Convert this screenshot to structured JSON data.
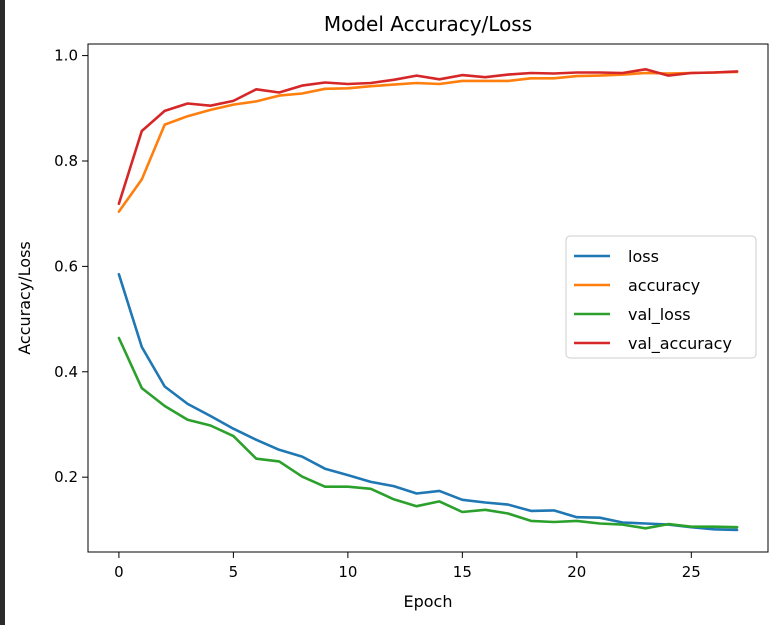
{
  "chart_data": {
    "type": "line",
    "title": "Model Accuracy/Loss",
    "xlabel": "Epoch",
    "ylabel": "Accuracy/Loss",
    "xlim": [
      -1.35,
      28.35
    ],
    "ylim": [
      0.058,
      1.022
    ],
    "xticks": [
      0,
      5,
      10,
      15,
      20,
      25
    ],
    "yticks": [
      0.2,
      0.4,
      0.6,
      0.8,
      1.0
    ],
    "xtick_labels": [
      "0",
      "5",
      "10",
      "15",
      "20",
      "25"
    ],
    "ytick_labels": [
      "0.2",
      "0.4",
      "0.6",
      "0.8",
      "1.0"
    ],
    "grid": false,
    "legend_position": "center-right",
    "x": [
      0,
      1,
      2,
      3,
      4,
      5,
      6,
      7,
      8,
      9,
      10,
      11,
      12,
      13,
      14,
      15,
      16,
      17,
      18,
      19,
      20,
      21,
      22,
      23,
      24,
      25,
      26,
      27
    ],
    "series": [
      {
        "name": "loss",
        "color": "#1f77b4",
        "values": [
          0.585,
          0.447,
          0.372,
          0.339,
          0.316,
          0.292,
          0.271,
          0.252,
          0.239,
          0.216,
          0.204,
          0.191,
          0.183,
          0.169,
          0.174,
          0.157,
          0.152,
          0.148,
          0.136,
          0.137,
          0.124,
          0.123,
          0.114,
          0.112,
          0.11,
          0.105,
          0.101,
          0.1
        ]
      },
      {
        "name": "accuracy",
        "color": "#ff7f0e",
        "values": [
          0.704,
          0.765,
          0.869,
          0.885,
          0.897,
          0.907,
          0.913,
          0.924,
          0.928,
          0.937,
          0.938,
          0.942,
          0.945,
          0.948,
          0.946,
          0.952,
          0.952,
          0.952,
          0.957,
          0.957,
          0.961,
          0.962,
          0.964,
          0.967,
          0.966,
          0.967,
          0.968,
          0.969
        ]
      },
      {
        "name": "val_loss",
        "color": "#2ca02c",
        "values": [
          0.464,
          0.369,
          0.335,
          0.309,
          0.298,
          0.278,
          0.235,
          0.23,
          0.201,
          0.182,
          0.182,
          0.178,
          0.158,
          0.145,
          0.154,
          0.134,
          0.138,
          0.131,
          0.117,
          0.115,
          0.117,
          0.112,
          0.11,
          0.103,
          0.111,
          0.106,
          0.106,
          0.105
        ]
      },
      {
        "name": "val_accuracy",
        "color": "#d62728",
        "values": [
          0.719,
          0.857,
          0.895,
          0.909,
          0.905,
          0.914,
          0.936,
          0.93,
          0.943,
          0.949,
          0.946,
          0.948,
          0.954,
          0.962,
          0.955,
          0.963,
          0.959,
          0.964,
          0.967,
          0.966,
          0.968,
          0.968,
          0.967,
          0.974,
          0.962,
          0.967,
          0.968,
          0.97
        ]
      }
    ]
  }
}
